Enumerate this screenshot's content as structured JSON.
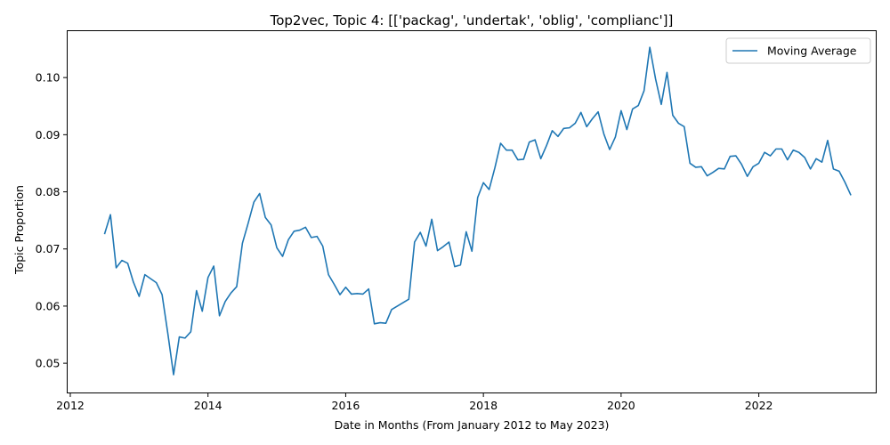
{
  "chart_data": {
    "type": "line",
    "title": "Top2vec, Topic 4: [['packag', 'undertak', 'oblig', 'complianc']]",
    "xlabel": "Date in Months (From January 2012 to May 2023)",
    "ylabel": "Topic Proportion",
    "xlim": [
      "2011-12-15",
      "2023-09-15"
    ],
    "ylim": [
      0.0448,
      0.1082
    ],
    "x_ticks": [
      "2012",
      "2014",
      "2016",
      "2018",
      "2020",
      "2022"
    ],
    "y_ticks": [
      "0.05",
      "0.06",
      "0.07",
      "0.08",
      "0.09",
      "0.10"
    ],
    "grid": false,
    "legend_position": "top-right",
    "series": [
      {
        "name": "Moving Average",
        "color": "#1f77b4",
        "x": [
          "2012-07",
          "2012-08",
          "2012-09",
          "2012-10",
          "2012-11",
          "2012-12",
          "2013-01",
          "2013-02",
          "2013-03",
          "2013-04",
          "2013-05",
          "2013-06",
          "2013-07",
          "2013-08",
          "2013-09",
          "2013-10",
          "2013-11",
          "2013-12",
          "2014-01",
          "2014-02",
          "2014-03",
          "2014-04",
          "2014-05",
          "2014-06",
          "2014-07",
          "2014-08",
          "2014-09",
          "2014-10",
          "2014-11",
          "2014-12",
          "2015-01",
          "2015-02",
          "2015-03",
          "2015-04",
          "2015-05",
          "2015-06",
          "2015-07",
          "2015-08",
          "2015-09",
          "2015-10",
          "2015-11",
          "2015-12",
          "2016-01",
          "2016-02",
          "2016-03",
          "2016-04",
          "2016-05",
          "2016-06",
          "2016-07",
          "2016-08",
          "2016-09",
          "2016-10",
          "2016-11",
          "2016-12",
          "2017-01",
          "2017-02",
          "2017-03",
          "2017-04",
          "2017-05",
          "2017-06",
          "2017-07",
          "2017-08",
          "2017-09",
          "2017-10",
          "2017-11",
          "2017-12",
          "2018-01",
          "2018-02",
          "2018-03",
          "2018-04",
          "2018-05",
          "2018-06",
          "2018-07",
          "2018-08",
          "2018-09",
          "2018-10",
          "2018-11",
          "2018-12",
          "2019-01",
          "2019-02",
          "2019-03",
          "2019-04",
          "2019-05",
          "2019-06",
          "2019-07",
          "2019-08",
          "2019-09",
          "2019-10",
          "2019-11",
          "2019-12",
          "2020-01",
          "2020-02",
          "2020-03",
          "2020-04",
          "2020-05",
          "2020-06",
          "2020-07",
          "2020-08",
          "2020-09",
          "2020-10",
          "2020-11",
          "2020-12",
          "2021-01",
          "2021-02",
          "2021-03",
          "2021-04",
          "2021-05",
          "2021-06",
          "2021-07",
          "2021-08",
          "2021-09",
          "2021-10",
          "2021-11",
          "2021-12",
          "2022-01",
          "2022-02",
          "2022-03",
          "2022-04",
          "2022-05",
          "2022-06",
          "2022-07",
          "2022-08",
          "2022-09",
          "2022-10",
          "2022-11",
          "2022-12",
          "2023-01",
          "2023-02",
          "2023-03",
          "2023-04",
          "2023-05"
        ],
        "values": [
          0.0727,
          0.076,
          0.0667,
          0.068,
          0.0675,
          0.0642,
          0.0617,
          0.0655,
          0.0648,
          0.0641,
          0.062,
          0.0552,
          0.048,
          0.0546,
          0.0544,
          0.0555,
          0.0627,
          0.0591,
          0.065,
          0.067,
          0.0583,
          0.0608,
          0.0623,
          0.0634,
          0.071,
          0.0745,
          0.0782,
          0.0797,
          0.0755,
          0.0742,
          0.0702,
          0.0687,
          0.0716,
          0.0731,
          0.0733,
          0.0738,
          0.072,
          0.0722,
          0.0705,
          0.0655,
          0.0638,
          0.062,
          0.0633,
          0.0621,
          0.0622,
          0.0621,
          0.063,
          0.0569,
          0.0571,
          0.057,
          0.0594,
          0.06,
          0.0606,
          0.0612,
          0.0712,
          0.0729,
          0.0705,
          0.0752,
          0.0697,
          0.0704,
          0.0712,
          0.0669,
          0.0672,
          0.073,
          0.0696,
          0.079,
          0.0816,
          0.0804,
          0.0842,
          0.0885,
          0.0873,
          0.0873,
          0.0856,
          0.0857,
          0.0887,
          0.0891,
          0.0858,
          0.0881,
          0.0907,
          0.0897,
          0.0911,
          0.0912,
          0.092,
          0.0939,
          0.0914,
          0.0928,
          0.094,
          0.0901,
          0.0874,
          0.0896,
          0.0942,
          0.0909,
          0.0945,
          0.0951,
          0.0977,
          0.1053,
          0.0998,
          0.0953,
          0.1009,
          0.0934,
          0.092,
          0.0914,
          0.085,
          0.0843,
          0.0844,
          0.0828,
          0.0834,
          0.0841,
          0.084,
          0.0862,
          0.0863,
          0.0848,
          0.0827,
          0.0844,
          0.085,
          0.0869,
          0.0863,
          0.0875,
          0.0875,
          0.0856,
          0.0873,
          0.0869,
          0.086,
          0.084,
          0.0858,
          0.0852,
          0.089,
          0.084,
          0.0836,
          0.0817,
          0.0795
        ]
      }
    ]
  }
}
